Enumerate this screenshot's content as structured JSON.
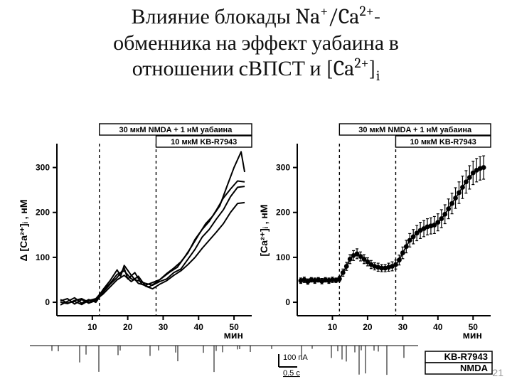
{
  "title_parts": {
    "line1a": "Влияние блокады Na",
    "sup1": "+",
    "line1b": "/Ca",
    "sup2": "2+",
    "line1c": "-",
    "line2": "обменника на эффект уабаина в",
    "line3a": "отношении сВПСТ и [Ca",
    "sup3": "2+",
    "line3b": "]",
    "sub1": "i"
  },
  "title_fontsize": 30,
  "title_color": "#111111",
  "page_number": "21",
  "colors": {
    "background": "#ffffff",
    "axis": "#000000",
    "trace": "#000000",
    "grid_dash": "#000000",
    "text": "#000000",
    "page_num": "#999999"
  },
  "left_chart": {
    "type": "line",
    "x_label": "мин",
    "y_label": "Δ [Ca²⁺]ᵢ , нМ",
    "label_fontsize": 14,
    "tick_fontsize": 12,
    "xlim": [
      0,
      55
    ],
    "ylim": [
      -30,
      350
    ],
    "x_ticks": [
      10,
      20,
      30,
      40,
      50
    ],
    "y_ticks": [
      0,
      100,
      200,
      300
    ],
    "line_width": 2,
    "line_color": "#000000",
    "bar_labels": {
      "top": "30 мкМ NMDA + 1 нМ уабаина",
      "top_from": 12,
      "top_to": 55,
      "sub": "10 мкМ KB-R7943",
      "sub_from": 28,
      "sub_to": 55
    },
    "dashed_vlines": [
      12,
      28
    ],
    "traces": [
      [
        [
          1,
          3
        ],
        [
          3,
          8
        ],
        [
          5,
          -4
        ],
        [
          7,
          6
        ],
        [
          9,
          -2
        ],
        [
          11,
          4
        ],
        [
          13,
          28
        ],
        [
          15,
          48
        ],
        [
          17,
          72
        ],
        [
          18,
          58
        ],
        [
          19,
          82
        ],
        [
          21,
          60
        ],
        [
          23,
          42
        ],
        [
          25,
          38
        ],
        [
          27,
          44
        ],
        [
          29,
          50
        ],
        [
          31,
          64
        ],
        [
          33,
          76
        ],
        [
          35,
          90
        ],
        [
          37,
          110
        ],
        [
          39,
          140
        ],
        [
          41,
          162
        ],
        [
          43,
          180
        ],
        [
          45,
          205
        ],
        [
          47,
          232
        ],
        [
          49,
          252
        ],
        [
          51,
          270
        ],
        [
          53,
          268
        ]
      ],
      [
        [
          1,
          -6
        ],
        [
          3,
          2
        ],
        [
          5,
          10
        ],
        [
          7,
          -2
        ],
        [
          9,
          6
        ],
        [
          11,
          0
        ],
        [
          13,
          22
        ],
        [
          15,
          40
        ],
        [
          17,
          55
        ],
        [
          19,
          76
        ],
        [
          20,
          52
        ],
        [
          22,
          66
        ],
        [
          24,
          40
        ],
        [
          26,
          34
        ],
        [
          28,
          44
        ],
        [
          30,
          56
        ],
        [
          32,
          68
        ],
        [
          34,
          78
        ],
        [
          36,
          100
        ],
        [
          38,
          124
        ],
        [
          40,
          150
        ],
        [
          42,
          175
        ],
        [
          44,
          192
        ],
        [
          46,
          215
        ],
        [
          48,
          258
        ],
        [
          50,
          300
        ],
        [
          52,
          335
        ],
        [
          53,
          290
        ]
      ],
      [
        [
          1,
          0
        ],
        [
          3,
          -3
        ],
        [
          5,
          4
        ],
        [
          7,
          8
        ],
        [
          9,
          0
        ],
        [
          11,
          6
        ],
        [
          13,
          18
        ],
        [
          15,
          34
        ],
        [
          17,
          50
        ],
        [
          19,
          60
        ],
        [
          21,
          46
        ],
        [
          23,
          58
        ],
        [
          25,
          36
        ],
        [
          27,
          30
        ],
        [
          29,
          40
        ],
        [
          31,
          48
        ],
        [
          33,
          60
        ],
        [
          35,
          70
        ],
        [
          37,
          84
        ],
        [
          39,
          100
        ],
        [
          41,
          120
        ],
        [
          43,
          138
        ],
        [
          45,
          156
        ],
        [
          47,
          175
        ],
        [
          49,
          200
        ],
        [
          51,
          220
        ],
        [
          53,
          222
        ]
      ],
      [
        [
          1,
          6
        ],
        [
          3,
          -2
        ],
        [
          5,
          2
        ],
        [
          7,
          -5
        ],
        [
          9,
          4
        ],
        [
          11,
          8
        ],
        [
          13,
          26
        ],
        [
          15,
          42
        ],
        [
          17,
          62
        ],
        [
          19,
          70
        ],
        [
          21,
          52
        ],
        [
          23,
          48
        ],
        [
          25,
          42
        ],
        [
          27,
          38
        ],
        [
          29,
          46
        ],
        [
          31,
          52
        ],
        [
          33,
          66
        ],
        [
          35,
          74
        ],
        [
          37,
          96
        ],
        [
          39,
          118
        ],
        [
          41,
          145
        ],
        [
          43,
          162
        ],
        [
          45,
          185
        ],
        [
          47,
          206
        ],
        [
          49,
          235
        ],
        [
          51,
          256
        ],
        [
          53,
          258
        ]
      ]
    ]
  },
  "right_chart": {
    "type": "errorbar",
    "x_label": "мин",
    "y_label": "[Ca²⁺]ᵢ , нМ",
    "label_fontsize": 14,
    "tick_fontsize": 12,
    "xlim": [
      0,
      55
    ],
    "ylim": [
      -30,
      350
    ],
    "x_ticks": [
      10,
      20,
      30,
      40,
      50
    ],
    "y_ticks": [
      0,
      100,
      200,
      300
    ],
    "marker": "circle",
    "marker_size": 3.4,
    "marker_fill": "#000000",
    "line_width": 1.8,
    "errorbar_width": 1.2,
    "cap_width": 4,
    "bar_labels": {
      "top": "30 мкМ NMDA + 1 нМ уабаина",
      "top_from": 12,
      "top_to": 55,
      "sub": "10 мкМ KB-R7943",
      "sub_from": 28,
      "sub_to": 55
    },
    "dashed_vlines": [
      12,
      28
    ],
    "points": [
      [
        1,
        48,
        6
      ],
      [
        2,
        50,
        6
      ],
      [
        3,
        46,
        6
      ],
      [
        4,
        50,
        5
      ],
      [
        5,
        48,
        6
      ],
      [
        6,
        50,
        5
      ],
      [
        7,
        47,
        6
      ],
      [
        8,
        50,
        5
      ],
      [
        9,
        48,
        6
      ],
      [
        10,
        50,
        6
      ],
      [
        11,
        49,
        5
      ],
      [
        12,
        52,
        6
      ],
      [
        13,
        66,
        8
      ],
      [
        14,
        80,
        9
      ],
      [
        15,
        96,
        10
      ],
      [
        16,
        104,
        11
      ],
      [
        17,
        108,
        11
      ],
      [
        18,
        102,
        10
      ],
      [
        19,
        96,
        10
      ],
      [
        20,
        90,
        9
      ],
      [
        21,
        84,
        9
      ],
      [
        22,
        80,
        8
      ],
      [
        23,
        78,
        9
      ],
      [
        24,
        76,
        8
      ],
      [
        25,
        76,
        8
      ],
      [
        26,
        78,
        9
      ],
      [
        27,
        80,
        10
      ],
      [
        28,
        84,
        10
      ],
      [
        29,
        94,
        11
      ],
      [
        30,
        110,
        13
      ],
      [
        31,
        124,
        14
      ],
      [
        32,
        138,
        15
      ],
      [
        33,
        146,
        16
      ],
      [
        34,
        154,
        17
      ],
      [
        35,
        160,
        18
      ],
      [
        36,
        164,
        18
      ],
      [
        37,
        168,
        18
      ],
      [
        38,
        170,
        18
      ],
      [
        39,
        172,
        19
      ],
      [
        40,
        178,
        19
      ],
      [
        41,
        186,
        20
      ],
      [
        42,
        196,
        21
      ],
      [
        43,
        208,
        22
      ],
      [
        44,
        220,
        23
      ],
      [
        45,
        232,
        23
      ],
      [
        46,
        244,
        24
      ],
      [
        47,
        256,
        25
      ],
      [
        48,
        268,
        25
      ],
      [
        49,
        278,
        26
      ],
      [
        50,
        288,
        26
      ],
      [
        51,
        294,
        26
      ],
      [
        52,
        298,
        26
      ],
      [
        53,
        300,
        26
      ]
    ]
  },
  "bottom_strip": {
    "type": "electrophysiology-trace",
    "scale_current": "100 пА",
    "scale_time": "0.5 с",
    "labels_right": [
      "KB-R7943",
      "NMDA"
    ],
    "label_fontsize": 13,
    "trace_color": "#000000"
  }
}
